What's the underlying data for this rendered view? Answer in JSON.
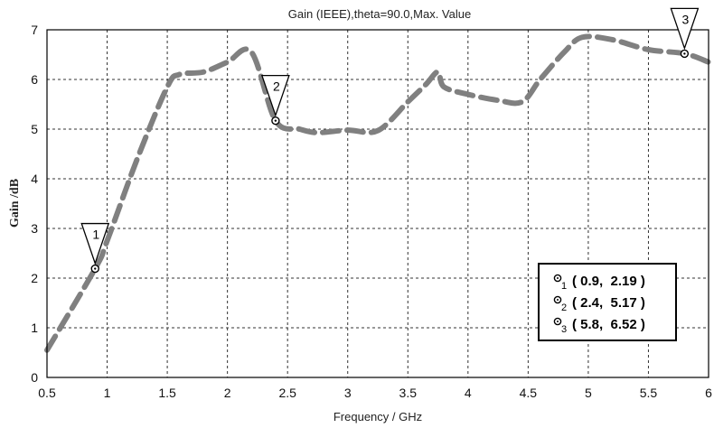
{
  "chart_data": {
    "type": "line",
    "title": "Gain (IEEE),theta=90.0,Max. Value",
    "xlabel": "Frequency / GHz",
    "ylabel": "Gain /dB",
    "xlim": [
      0.5,
      6
    ],
    "ylim": [
      0,
      7
    ],
    "x_ticks": [
      "0.5",
      "1",
      "1.5",
      "2",
      "2.5",
      "3",
      "3.5",
      "4",
      "4.5",
      "5",
      "5.5",
      "6"
    ],
    "y_ticks": [
      "0",
      "1",
      "2",
      "3",
      "4",
      "5",
      "6",
      "7"
    ],
    "grid": true,
    "series": [
      {
        "color": "#808080",
        "x": [
          0.5,
          0.9,
          1.0,
          1.25,
          1.5,
          1.6,
          1.8,
          2.0,
          2.2,
          2.4,
          2.6,
          2.75,
          3.0,
          3.25,
          3.5,
          3.65,
          3.75,
          3.8,
          4.0,
          4.25,
          4.45,
          4.6,
          4.8,
          4.95,
          5.2,
          5.5,
          5.8,
          6.0
        ],
        "y": [
          0.55,
          2.19,
          2.75,
          4.4,
          5.85,
          6.1,
          6.15,
          6.35,
          6.55,
          5.17,
          5.0,
          4.93,
          4.98,
          4.97,
          5.55,
          5.9,
          6.15,
          5.85,
          5.7,
          5.58,
          5.55,
          6.0,
          6.55,
          6.85,
          6.8,
          6.6,
          6.52,
          6.35
        ]
      }
    ],
    "markers": [
      {
        "id": "1",
        "x": 0.9,
        "y": 2.19,
        "text": "( 0.9,  2.19 )"
      },
      {
        "id": "2",
        "x": 2.4,
        "y": 5.17,
        "text": "( 2.4,  5.17 )"
      },
      {
        "id": "3",
        "x": 5.8,
        "y": 6.52,
        "text": "( 5.8,  6.52 )"
      }
    ],
    "legend_position": "bottom-right"
  }
}
